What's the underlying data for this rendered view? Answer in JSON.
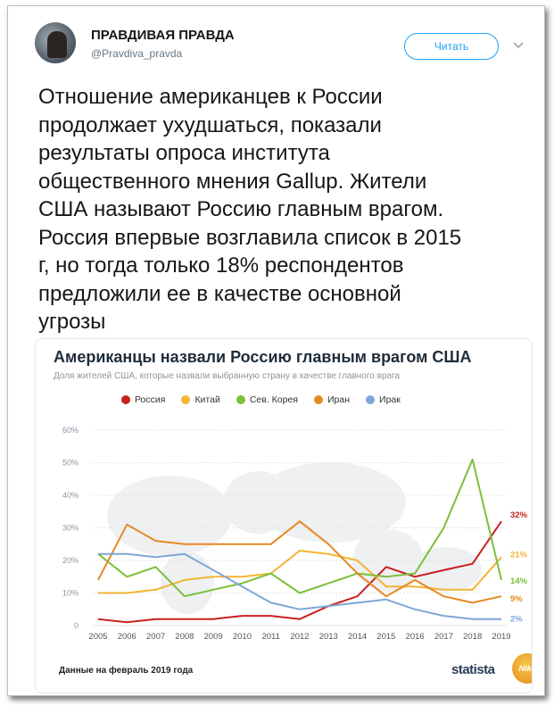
{
  "account": {
    "name": "ПРАВДИВАЯ ПРАВДА",
    "handle": "@Pravdiva_pravda",
    "follow_label": "Читать",
    "avatar_icon": "bear-avatar-icon",
    "menu_icon": "chevron-down-icon"
  },
  "tweet": {
    "lines": [
      "Отношение американцев к России",
      "продолжает ухудшаться, показали",
      "результаты опроса института",
      "общественного мнения Gallup. Жители",
      "США называют Россию главным врагом.",
      "Россия впервые возглавила список в 2015",
      "г, но тогда только 18% респондентов",
      "предложили ее в качестве основной",
      "угрозы"
    ]
  },
  "card": {
    "source_note": "Данные на февраль 2019 года",
    "brand": "statista",
    "stamp_text": "Nika"
  },
  "colors": {
    "accent": "#1da1f2",
    "russia": "#c8201e",
    "china": "#f2b534",
    "north_korea": "#7cbf3a",
    "iran": "#e58a22",
    "iraq": "#7fa6d6"
  },
  "chart_data": {
    "type": "line",
    "title": "Американцы назвали Россию главным врагом США",
    "subtitle": "Доля жителей США, которые назвали выбранную страну в качестве главного врага",
    "x": [
      2005,
      2006,
      2007,
      2008,
      2009,
      2010,
      2011,
      2012,
      2013,
      2014,
      2015,
      2016,
      2017,
      2018,
      2019
    ],
    "y_ticks": [
      "0",
      "10%",
      "20%",
      "30%",
      "40%",
      "50%",
      "60%"
    ],
    "ylim": [
      0,
      60
    ],
    "grid": true,
    "legend_placement": "top",
    "series": [
      {
        "name": "Россия",
        "color": "#c8201e",
        "end_label": "32%",
        "values": [
          2,
          1,
          2,
          2,
          2,
          3,
          3,
          2,
          6,
          9,
          18,
          15,
          17,
          19,
          32
        ]
      },
      {
        "name": "Китай",
        "color": "#f2b534",
        "end_label": "21%",
        "values": [
          10,
          10,
          11,
          14,
          15,
          15,
          16,
          23,
          22,
          20,
          12,
          12,
          11,
          11,
          21
        ]
      },
      {
        "name": "Сев. Корея",
        "color": "#7cbf3a",
        "end_label": "14%",
        "values": [
          22,
          15,
          18,
          9,
          11,
          13,
          16,
          10,
          13,
          16,
          15,
          16,
          30,
          51,
          14
        ]
      },
      {
        "name": "Иран",
        "color": "#e58a22",
        "end_label": "9%",
        "values": [
          14,
          31,
          26,
          25,
          25,
          25,
          25,
          32,
          25,
          16,
          9,
          14,
          9,
          7,
          9
        ]
      },
      {
        "name": "Ирак",
        "color": "#7fa6d6",
        "end_label": "2%",
        "values": [
          22,
          22,
          21,
          22,
          17,
          12,
          7,
          5,
          6,
          7,
          8,
          5,
          3,
          2,
          2
        ]
      }
    ]
  }
}
